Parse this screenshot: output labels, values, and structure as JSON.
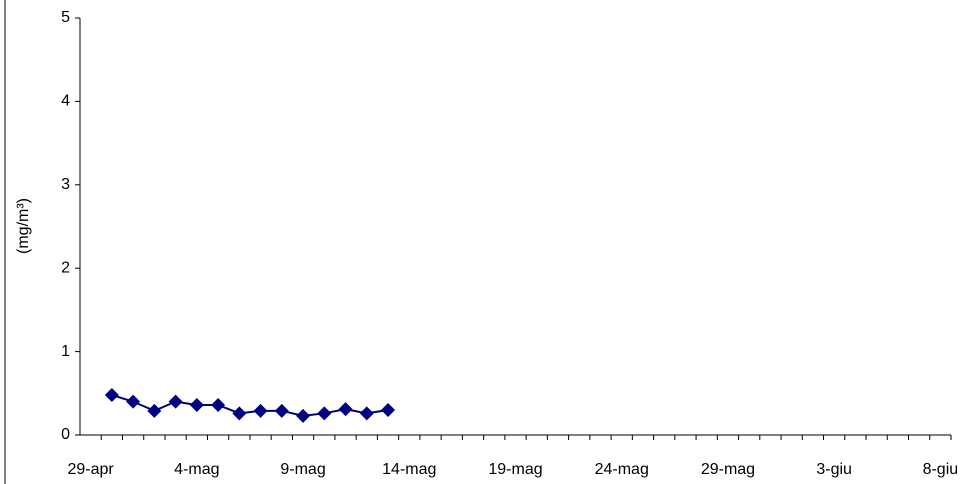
{
  "chart_data": {
    "type": "line",
    "y_label": "(mg/m³)",
    "categories": [
      "29-apr",
      null,
      null,
      null,
      null,
      "4-mag",
      null,
      null,
      null,
      null,
      "9-mag",
      null,
      null,
      null,
      null,
      "14-mag",
      null,
      null,
      null,
      null,
      "19-mag",
      null,
      null,
      null,
      null,
      "24-mag",
      null,
      null,
      null,
      null,
      "29-mag",
      null,
      null,
      null,
      null,
      "3-giu",
      null,
      null,
      null,
      null,
      "8-giu"
    ],
    "series": [
      {
        "color": "#000080",
        "values": [
          null,
          0.48,
          0.4,
          0.29,
          0.4,
          0.36,
          0.36,
          0.26,
          0.29,
          0.29,
          0.23,
          0.26,
          0.31,
          0.26,
          0.3,
          null,
          null,
          null,
          null,
          null,
          null,
          null,
          null,
          null,
          null,
          null,
          null,
          null,
          null,
          null,
          null,
          null,
          null,
          null,
          null,
          null,
          null,
          null,
          null,
          null,
          null
        ]
      }
    ],
    "ylim": [
      0,
      5
    ],
    "yticks": [
      0,
      1,
      2,
      3,
      4,
      5
    ],
    "grid": false
  }
}
